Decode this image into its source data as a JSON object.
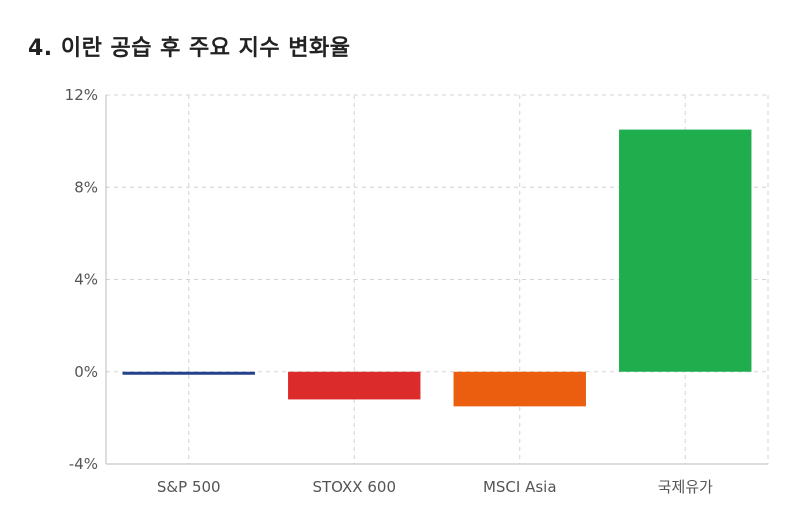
{
  "title": "4. 이란 공습 후 주요 지수 변화율",
  "chart_data": {
    "type": "bar",
    "title": "4. 이란 공습 후 주요 지수 변화율",
    "categories": [
      "S&P 500",
      "STOXX 600",
      "MSCI Asia",
      "국제유가"
    ],
    "values": [
      -0.1,
      -1.2,
      -1.5,
      10.5
    ],
    "colors": [
      "#24418c",
      "#dc2b2b",
      "#eb5e0f",
      "#1fad4d"
    ],
    "ylim": [
      -4,
      12
    ],
    "yticks": [
      -4,
      0,
      4,
      8,
      12
    ],
    "ytick_labels": [
      "-4%",
      "0%",
      "4%",
      "8%",
      "12%"
    ],
    "xlabel": "",
    "ylabel": "",
    "grid": true
  }
}
